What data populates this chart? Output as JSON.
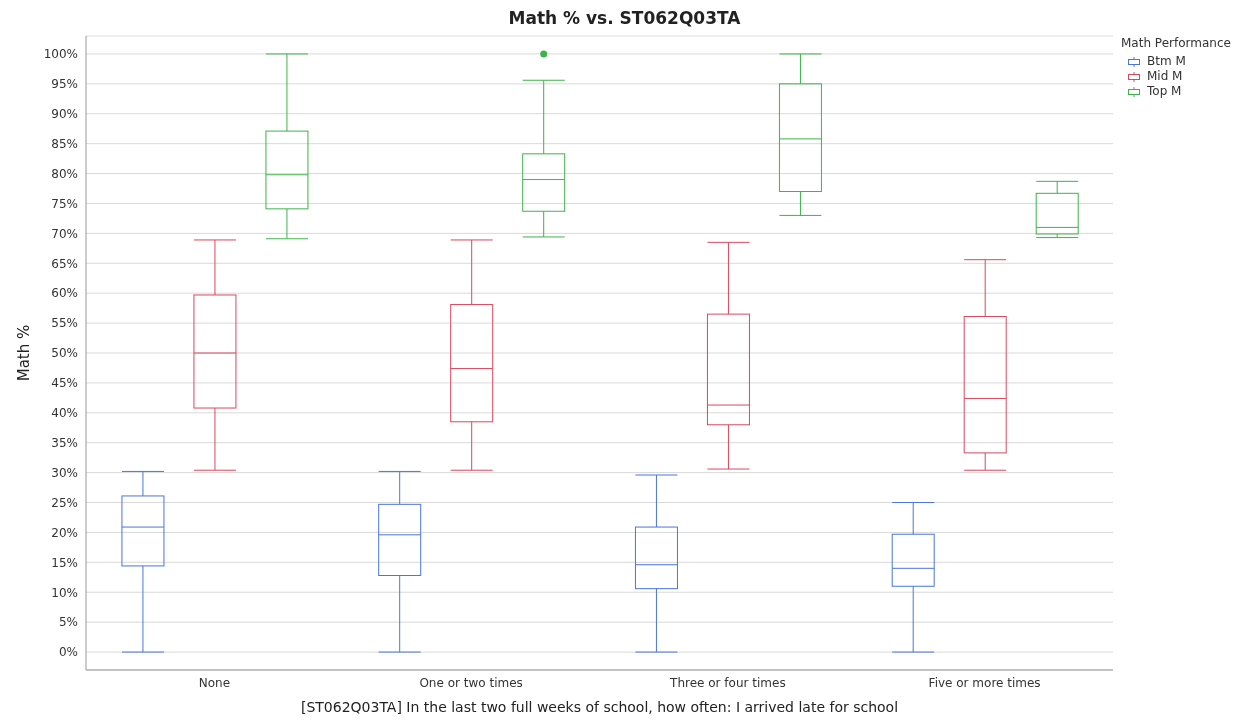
{
  "chart_data": {
    "type": "box",
    "title": "Math % vs. ST062Q03TA",
    "xlabel": "[ST062Q03TA] In the last two full weeks of school, how often: I arrived late for school",
    "ylabel": "Math %",
    "legend_title": "Math Performance",
    "legend": "top right",
    "grid": "y",
    "categories": [
      "None",
      "One or two times",
      "Three or four times",
      "Five or more times"
    ],
    "ylim": [
      -3,
      103
    ],
    "yticks": [
      {
        "value": 0,
        "label": "0%"
      },
      {
        "value": 5,
        "label": "5%"
      },
      {
        "value": 10,
        "label": "10%"
      },
      {
        "value": 15,
        "label": "15%"
      },
      {
        "value": 20,
        "label": "20%"
      },
      {
        "value": 25,
        "label": "25%"
      },
      {
        "value": 30,
        "label": "30%"
      },
      {
        "value": 35,
        "label": "35%"
      },
      {
        "value": 40,
        "label": "40%"
      },
      {
        "value": 45,
        "label": "45%"
      },
      {
        "value": 50,
        "label": "50%"
      },
      {
        "value": 55,
        "label": "55%"
      },
      {
        "value": 60,
        "label": "60%"
      },
      {
        "value": 65,
        "label": "65%"
      },
      {
        "value": 70,
        "label": "70%"
      },
      {
        "value": 75,
        "label": "75%"
      },
      {
        "value": 80,
        "label": "80%"
      },
      {
        "value": 85,
        "label": "85%"
      },
      {
        "value": 90,
        "label": "90%"
      },
      {
        "value": 95,
        "label": "95%"
      },
      {
        "value": 100,
        "label": "100%"
      }
    ],
    "series": [
      {
        "name": "Btm M",
        "color": "#4a74e0",
        "boxes": [
          {
            "low": 0,
            "q1": 14.4,
            "median": 20.9,
            "q3": 26.1,
            "high": 30.2
          },
          {
            "low": 0,
            "q1": 12.8,
            "median": 19.6,
            "q3": 24.7,
            "high": 30.2
          },
          {
            "low": 0,
            "q1": 10.6,
            "median": 14.6,
            "q3": 20.9,
            "high": 29.6
          },
          {
            "low": 0,
            "q1": 11,
            "median": 14,
            "q3": 19.7,
            "high": 25
          }
        ]
      },
      {
        "name": "Mid M",
        "color": "#d9485f",
        "boxes": [
          {
            "low": 30.4,
            "q1": 40.8,
            "median": 50,
            "q3": 59.7,
            "high": 68.9
          },
          {
            "low": 30.4,
            "q1": 38.5,
            "median": 47.4,
            "q3": 58.1,
            "high": 68.9
          },
          {
            "low": 30.6,
            "q1": 38,
            "median": 41.3,
            "q3": 56.5,
            "high": 68.5
          },
          {
            "low": 30.4,
            "q1": 33.3,
            "median": 42.4,
            "q3": 56.1,
            "high": 65.6
          }
        ]
      },
      {
        "name": "Top M",
        "color": "#3fb34a",
        "boxes": [
          {
            "low": 69.1,
            "q1": 74.1,
            "median": 79.8,
            "q3": 87.1,
            "high": 100
          },
          {
            "low": 69.4,
            "q1": 73.7,
            "median": 79,
            "q3": 83.3,
            "high": 95.6,
            "outliers": [
              100
            ]
          },
          {
            "low": 73,
            "q1": 77,
            "median": 85.8,
            "q3": 95,
            "high": 100
          },
          {
            "low": 69.3,
            "q1": 69.9,
            "median": 71,
            "q3": 76.7,
            "high": 78.7
          }
        ]
      }
    ]
  }
}
